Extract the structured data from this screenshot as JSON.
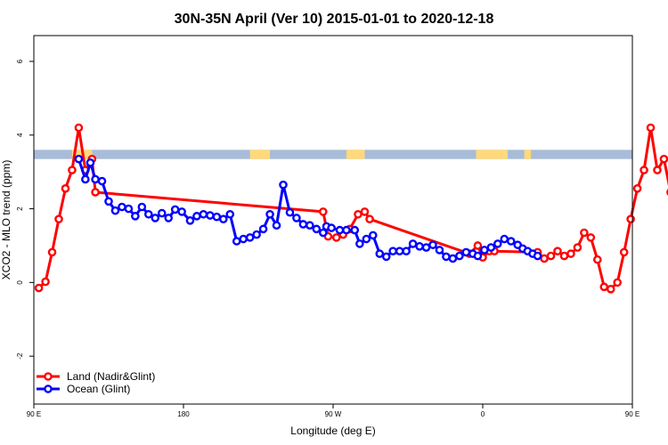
{
  "chart_data": {
    "type": "line",
    "title": "30N-35N April (Ver 10)   2015-01-01 to 2020-12-18",
    "xlabel": "Longitude (deg E)",
    "ylabel": "XCO2 - MLO trend (ppm)",
    "xlim": [
      90,
      450
    ],
    "ylim": [
      -3.3,
      6.7
    ],
    "xticks": [
      {
        "value": 90,
        "label": "90 E"
      },
      {
        "value": 180,
        "label": "180"
      },
      {
        "value": 270,
        "label": "90 W"
      },
      {
        "value": 360,
        "label": "0"
      },
      {
        "value": 450,
        "label": "90 E"
      },
      {
        "value": 540,
        "label": "180"
      }
    ],
    "yticks": [
      {
        "value": -2,
        "label": "-2"
      },
      {
        "value": 0,
        "label": "0"
      },
      {
        "value": 2,
        "label": "2"
      },
      {
        "value": 4,
        "label": "4"
      },
      {
        "value": 6,
        "label": "6"
      }
    ],
    "grid": false,
    "legend_position": "bottom-left",
    "land_ocean_strip": {
      "y_range": [
        3.35,
        3.6
      ],
      "land_color": "#FFD97A",
      "ocean_color": "#A8BCD8",
      "land_spans": [
        [
          113,
          125
        ],
        [
          220,
          232
        ],
        [
          278,
          289
        ],
        [
          356,
          375
        ],
        [
          385,
          389
        ],
        [
          483,
          494
        ]
      ]
    },
    "series": [
      {
        "name": "Land (Nadir&Glint)",
        "color": "#FF0000",
        "x": [
          93,
          97,
          101,
          105,
          109,
          113,
          117,
          121,
          125,
          127,
          264,
          267,
          272,
          276,
          280,
          285,
          289,
          292,
          352,
          357,
          360,
          364,
          367,
          393,
          397,
          401,
          405,
          409,
          413,
          417,
          421,
          425,
          429,
          433,
          437,
          441,
          445,
          449,
          453,
          457,
          461,
          465,
          469,
          473,
          477,
          481,
          485,
          487
        ],
        "y": [
          -0.15,
          0.02,
          0.82,
          1.72,
          2.55,
          3.05,
          4.2,
          3.05,
          3.35,
          2.45,
          1.92,
          1.25,
          1.22,
          1.3,
          1.45,
          1.85,
          1.92,
          1.72,
          0.78,
          1.0,
          0.68,
          0.85,
          0.85,
          0.82,
          0.65,
          0.72,
          0.85,
          0.72,
          0.78,
          0.95,
          1.35,
          1.22,
          0.62,
          -0.12,
          -0.18,
          0.0,
          0.82,
          1.72,
          2.55,
          3.05,
          4.2,
          3.05,
          3.35,
          2.45,
          2.8,
          2.72,
          2.2,
          1.95
        ]
      },
      {
        "name": "Ocean (Glint)",
        "color": "#0000FF",
        "x": [
          117,
          121,
          124,
          127,
          131,
          135,
          139,
          143,
          147,
          151,
          155,
          159,
          163,
          167,
          171,
          175,
          179,
          184,
          188,
          192,
          196,
          200,
          204,
          208,
          212,
          216,
          220,
          224,
          228,
          232,
          236,
          240,
          244,
          248,
          252,
          256,
          260,
          264,
          266,
          269,
          274,
          278,
          283,
          286,
          290,
          294,
          298,
          302,
          306,
          310,
          314,
          318,
          322,
          326,
          330,
          334,
          338,
          342,
          346,
          350,
          354,
          357,
          361,
          365,
          369,
          373,
          377,
          381,
          384,
          387,
          390,
          393
        ],
        "y": [
          3.35,
          2.8,
          3.25,
          2.8,
          2.75,
          2.2,
          1.95,
          2.05,
          2.0,
          1.8,
          2.05,
          1.85,
          1.75,
          1.88,
          1.75,
          1.98,
          1.92,
          1.68,
          1.8,
          1.85,
          1.82,
          1.78,
          1.72,
          1.85,
          1.12,
          1.18,
          1.22,
          1.3,
          1.45,
          1.85,
          1.55,
          2.65,
          1.9,
          1.75,
          1.58,
          1.55,
          1.45,
          1.35,
          1.52,
          1.48,
          1.42,
          1.42,
          1.42,
          1.05,
          1.18,
          1.28,
          0.78,
          0.7,
          0.85,
          0.85,
          0.85,
          1.05,
          0.98,
          0.95,
          1.02,
          0.88,
          0.7,
          0.65,
          0.72,
          0.82,
          0.78,
          0.72,
          0.88,
          0.95,
          1.05,
          1.18,
          1.12,
          1.02,
          0.92,
          0.85,
          0.78,
          0.72
        ]
      }
    ]
  }
}
